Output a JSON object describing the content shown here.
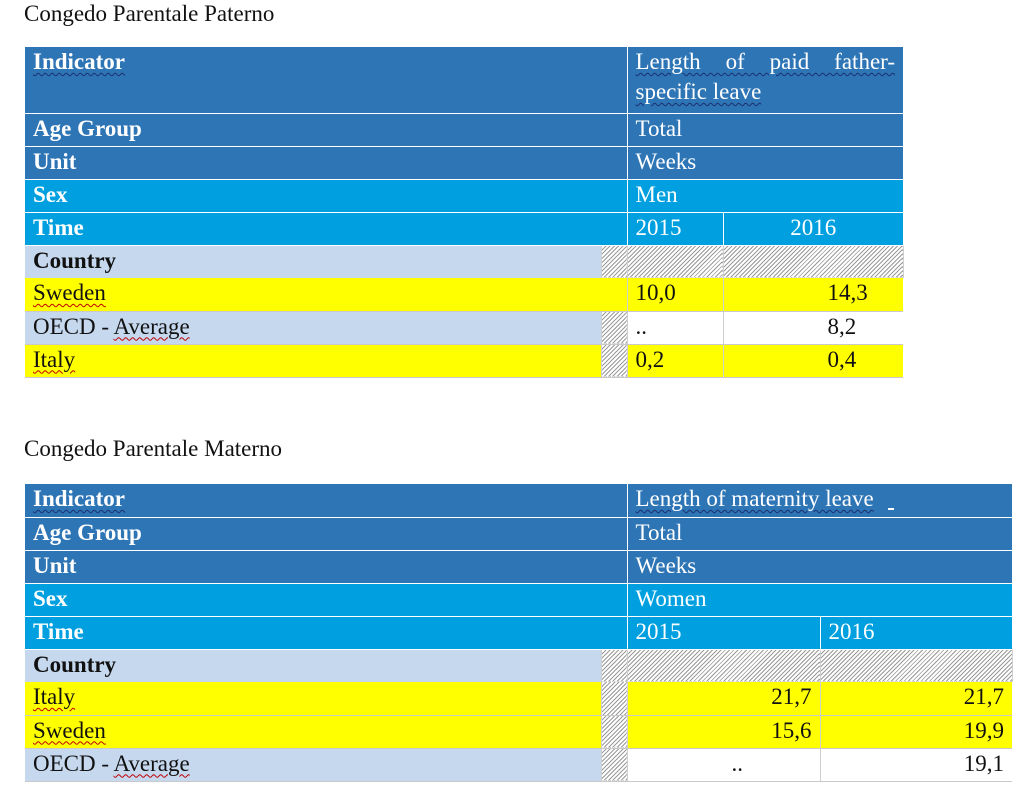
{
  "section1": {
    "heading": "Congedo Parentale Paterno",
    "indicator_label": "Indicator",
    "indicator_value": "Length of paid father-specific leave",
    "age_group_label": "Age Group",
    "age_group_value": "Total",
    "unit_label": "Unit",
    "unit_value": "Weeks",
    "sex_label": "Sex",
    "sex_value": "Men",
    "time_label": "Time",
    "years": [
      "2015",
      "2016"
    ],
    "country_label": "Country",
    "rows": [
      {
        "country": "Sweden",
        "v2015": "10,0",
        "v2016": "14,3"
      },
      {
        "country": "OECD - Average",
        "v2015": "..",
        "v2016": "8,2"
      },
      {
        "country": "Italy",
        "v2015": "0,2",
        "v2016": "0,4"
      }
    ]
  },
  "section2": {
    "heading": "Congedo Parentale Materno",
    "indicator_label": "Indicator",
    "indicator_value": "Length of maternity leave",
    "age_group_label": "Age Group",
    "age_group_value": "Total",
    "unit_label": "Unit",
    "unit_value": "Weeks",
    "sex_label": "Sex",
    "sex_value": "Women",
    "time_label": "Time",
    "years": [
      "2015",
      "2016"
    ],
    "country_label": "Country",
    "rows": [
      {
        "country": "Italy",
        "v2015": "21,7",
        "v2016": "21,7"
      },
      {
        "country": "Sweden",
        "v2015": "15,6",
        "v2016": "19,9"
      },
      {
        "country": "OECD - Average",
        "v2015": "..",
        "v2016": "19,1"
      }
    ]
  },
  "colors": {
    "header_blue": "#2e75b6",
    "header_cyan": "#00a0e0",
    "country_blue": "#c5d8ee",
    "highlight_yellow": "#ffff00"
  }
}
